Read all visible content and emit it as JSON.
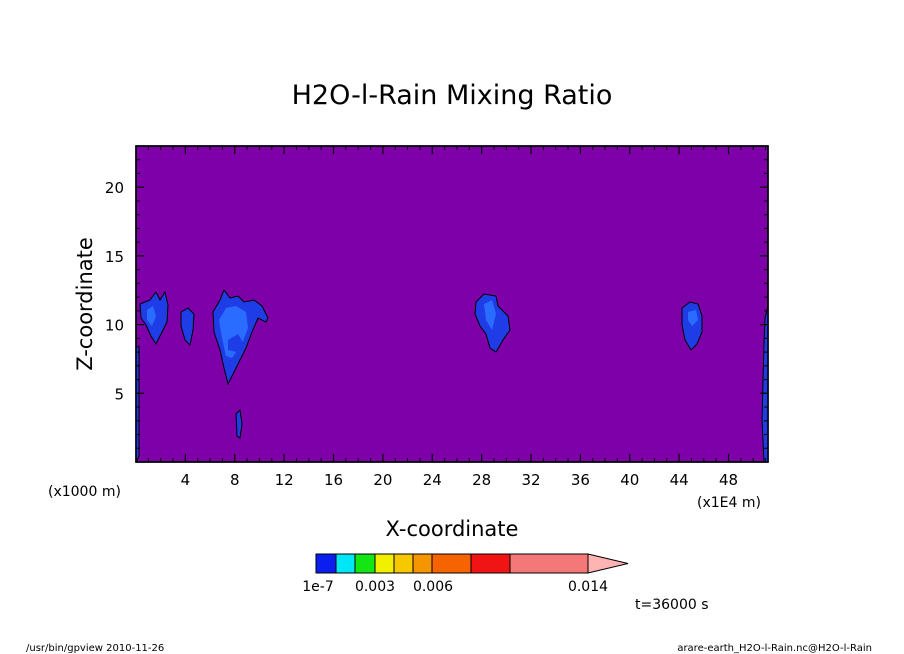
{
  "chart_data": {
    "type": "heatmap",
    "title": "H2O-l-Rain Mixing Ratio",
    "xlabel": "X-coordinate",
    "ylabel": "Z-coordinate",
    "x_unit": "(x1000 m)",
    "x_unit_secondary": "(x1E4 m)",
    "x_ticks": [
      4,
      8,
      12,
      16,
      20,
      24,
      28,
      32,
      36,
      40,
      44,
      48
    ],
    "y_ticks": [
      5,
      10,
      15,
      20
    ],
    "xlim": [
      0,
      51.2
    ],
    "ylim": [
      0,
      23
    ],
    "background_color": "#7d00a8",
    "colorbar": {
      "colors": [
        "#0a1ef0",
        "#00e6f5",
        "#14e614",
        "#f0f000",
        "#f5c800",
        "#f59600",
        "#f56400",
        "#f01414",
        "#f57878",
        "#ffb4b4"
      ],
      "labels": [
        "1e-7",
        "0.003",
        "0.006",
        "0.014"
      ]
    },
    "cells": [
      {
        "x": 1.5,
        "z": 10.3,
        "level": "1e-7"
      },
      {
        "x": 4.2,
        "z": 9.6,
        "level": "1e-7"
      },
      {
        "x": 8.0,
        "z": 9.5,
        "level": "1e-7"
      },
      {
        "x": 8.3,
        "z": 2.6,
        "level": "1e-7"
      },
      {
        "x": 29.5,
        "z": 10.0,
        "level": "1e-7"
      },
      {
        "x": 45.5,
        "z": 10.2,
        "level": "1e-7"
      }
    ],
    "time_label": "t=36000 s"
  },
  "footer": {
    "left": "/usr/bin/gpview   2010-11-26",
    "right": "arare-earth_H2O-l-Rain.nc@H2O-l-Rain"
  }
}
